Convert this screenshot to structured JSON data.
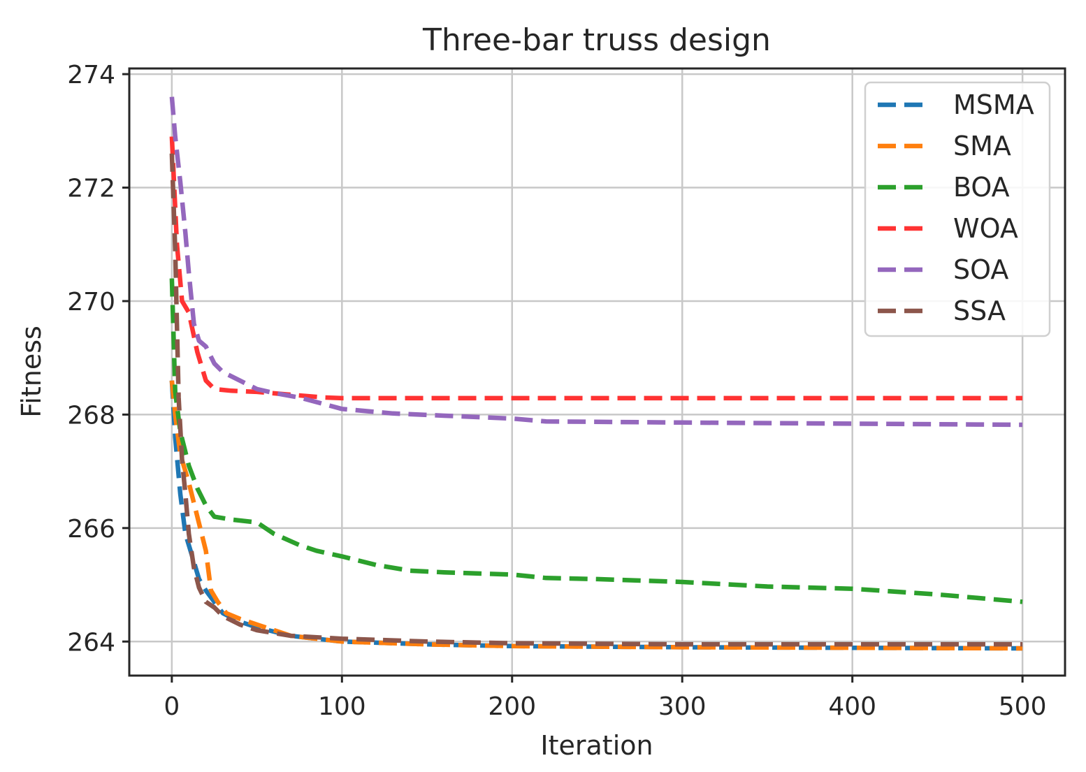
{
  "chart_data": {
    "type": "line",
    "title": "Three-bar truss design",
    "xlabel": "Iteration",
    "ylabel": "Fitness",
    "xlim": [
      -25,
      525
    ],
    "ylim": [
      263.4,
      274.1
    ],
    "xticks": [
      0,
      100,
      200,
      300,
      400,
      500
    ],
    "yticks": [
      264,
      266,
      268,
      270,
      272,
      274
    ],
    "grid": true,
    "legend_position": "top-right",
    "series": [
      {
        "name": "MSMA",
        "color": "#1f77b4",
        "x": [
          0,
          2,
          5,
          8,
          12,
          16,
          20,
          25,
          30,
          40,
          50,
          70,
          100,
          150,
          200,
          300,
          400,
          500
        ],
        "y": [
          268.6,
          267.6,
          266.6,
          265.9,
          265.5,
          265.1,
          264.9,
          264.7,
          264.5,
          264.35,
          264.25,
          264.1,
          264.0,
          263.95,
          263.92,
          263.9,
          263.89,
          263.88
        ]
      },
      {
        "name": "SMA",
        "color": "#ff7f0e",
        "x": [
          0,
          2,
          5,
          10,
          15,
          20,
          23,
          27,
          32,
          40,
          50,
          70,
          100,
          150,
          200,
          300,
          400,
          500
        ],
        "y": [
          268.6,
          268.0,
          267.3,
          266.8,
          266.2,
          265.6,
          264.9,
          264.7,
          264.5,
          264.4,
          264.3,
          264.1,
          264.0,
          263.95,
          263.92,
          263.9,
          263.89,
          263.88
        ]
      },
      {
        "name": "BOA",
        "color": "#2ca02c",
        "x": [
          0,
          2,
          5,
          10,
          15,
          20,
          25,
          35,
          50,
          60,
          75,
          85,
          100,
          120,
          140,
          160,
          200,
          220,
          250,
          300,
          350,
          400,
          450,
          500
        ],
        "y": [
          270.4,
          268.4,
          267.7,
          267.1,
          266.7,
          266.4,
          266.2,
          266.15,
          266.1,
          265.9,
          265.7,
          265.6,
          265.5,
          265.35,
          265.25,
          265.22,
          265.18,
          265.12,
          265.1,
          265.05,
          264.97,
          264.93,
          264.83,
          264.7
        ]
      },
      {
        "name": "WOA",
        "color": "#ff3333",
        "x": [
          0,
          3,
          6,
          10,
          15,
          20,
          25,
          35,
          50,
          70,
          90,
          100,
          200,
          300,
          400,
          500
        ],
        "y": [
          272.9,
          271.0,
          270.0,
          269.8,
          269.1,
          268.6,
          268.45,
          268.42,
          268.4,
          268.35,
          268.3,
          268.29,
          268.29,
          268.29,
          268.29,
          268.29
        ]
      },
      {
        "name": "SOA",
        "color": "#9467bd",
        "x": [
          0,
          2,
          5,
          8,
          10,
          13,
          16,
          20,
          25,
          30,
          40,
          50,
          60,
          75,
          100,
          130,
          160,
          200,
          220,
          300,
          400,
          500
        ],
        "y": [
          273.6,
          272.9,
          272.1,
          271.2,
          270.5,
          269.6,
          269.3,
          269.2,
          268.9,
          268.75,
          268.6,
          268.45,
          268.38,
          268.3,
          268.1,
          268.02,
          267.98,
          267.93,
          267.88,
          267.86,
          267.84,
          267.82
        ]
      },
      {
        "name": "SSA",
        "color": "#8c564b",
        "x": [
          0,
          2,
          4,
          6,
          8,
          10,
          13,
          16,
          20,
          25,
          30,
          40,
          50,
          70,
          100,
          150,
          200,
          300,
          400,
          500
        ],
        "y": [
          272.6,
          270.9,
          268.3,
          267.2,
          266.6,
          265.9,
          265.3,
          264.95,
          264.7,
          264.6,
          264.45,
          264.3,
          264.2,
          264.1,
          264.05,
          264.0,
          263.97,
          263.95,
          263.95,
          263.95
        ]
      }
    ]
  }
}
